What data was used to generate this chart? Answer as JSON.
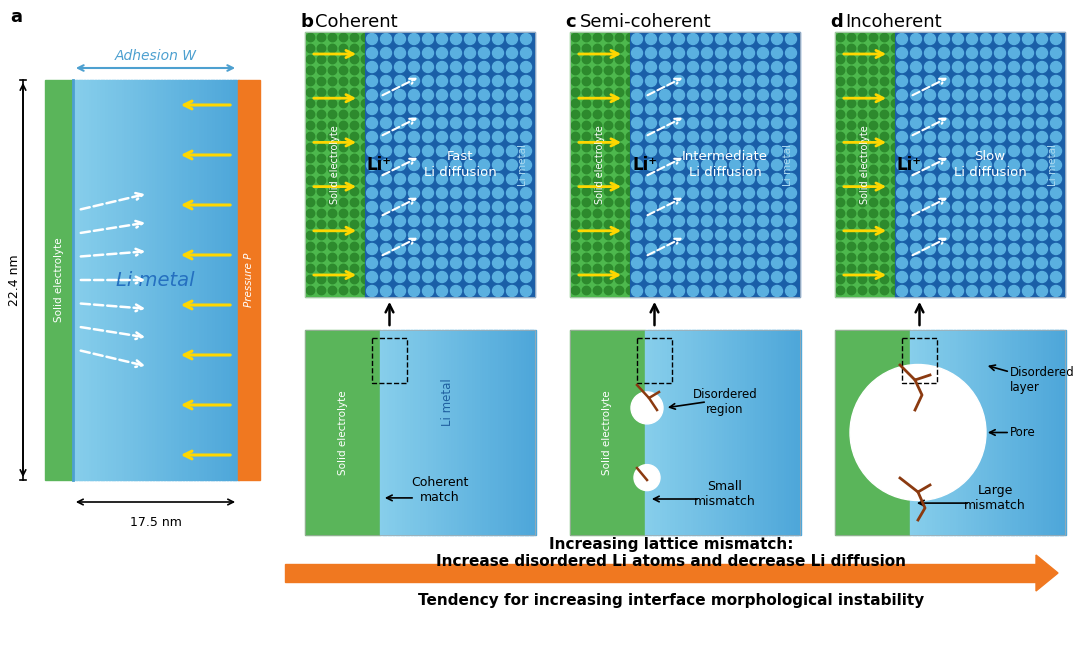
{
  "bg_color": "#ffffff",
  "panel_a_label": "a",
  "panel_b_label": "b",
  "panel_c_label": "c",
  "panel_d_label": "d",
  "coherent_title": "Coherent",
  "semi_title": "Semi-coherent",
  "incoherent_title": "Incoherent",
  "adhesion_text": "Adhesion W",
  "pressure_text": "Pressure P",
  "li_metal_text": "Li metal",
  "solid_electrolyte_text": "Solid electrolyte",
  "dim_22": "22.4 nm",
  "dim_175": "17.5 nm",
  "fast_diff": "Fast\nLi diffusion",
  "inter_diff": "Intermediate\nLi diffusion",
  "slow_diff": "Slow\nLi diffusion",
  "li_plus": "Li⁺",
  "coherent_match": "Coherent\nmatch",
  "small_mismatch": "Small\nmismatch",
  "large_mismatch": "Large\nmismatch",
  "disordered_region": "Disordered\nregion",
  "disordered_layer": "Disordered\nlayer",
  "pore_text": "Pore",
  "li_metal_small": "Li metal",
  "arrow_text1": "Increasing lattice mismatch:",
  "arrow_text2": "Increase disordered Li atoms and decrease Li diffusion",
  "arrow_text3": "Tendency for increasing interface morphological instability",
  "green_bg": "#4db84d",
  "green_dot_color": "#2d8a2d",
  "blue_dot_bg": "#2060b0",
  "blue_dot_color": "#5aacdc",
  "orange_strip": "#f07820",
  "yellow_arrow": "#ffd700",
  "orange_arrow_color": "#f07820"
}
